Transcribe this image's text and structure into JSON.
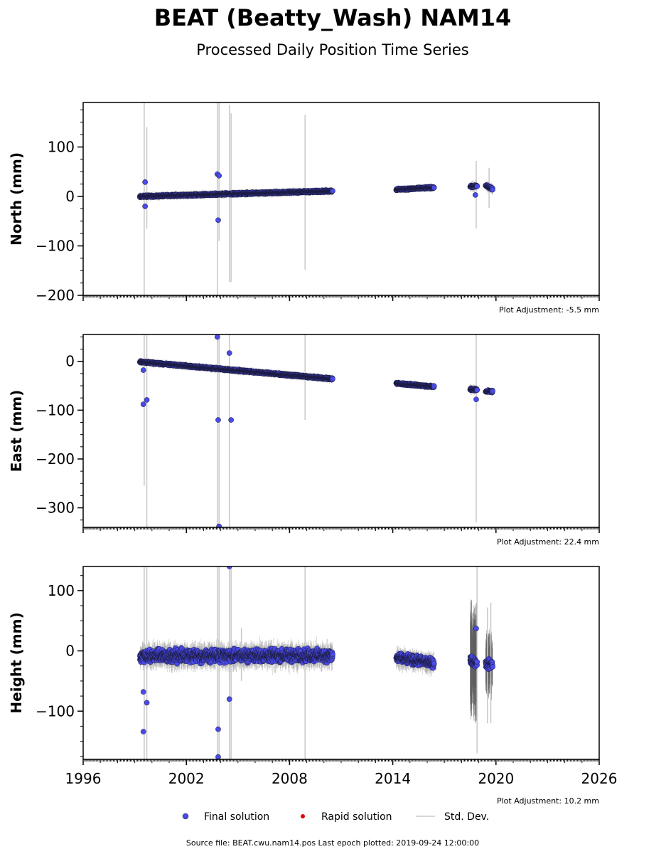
{
  "chart_data": {
    "type": "scatter",
    "title": "BEAT (Beatty_Wash) NAM14",
    "subtitle": "Processed Daily Position Time Series",
    "xlim": [
      1996,
      2026
    ],
    "x_ticks": [
      1996,
      2002,
      2008,
      2014,
      2020,
      2026
    ],
    "grid": false,
    "legend": {
      "placement": "bottom",
      "entries": [
        "Final solution",
        "Rapid solution",
        "Std. Dev."
      ]
    },
    "footer": "Source file: BEAT.cwu.nam14.pos  Last epoch plotted: 2019-09-24 12:00:00",
    "colors": {
      "final": "#4a4ae8",
      "rapid": "#dd0000",
      "std_dev": "#c8c8c8"
    },
    "panels": [
      {
        "ylabel": "North (mm)",
        "ylim": [
          -200,
          190
        ],
        "yticks": [
          -200,
          -100,
          0,
          100
        ],
        "adjustment": "Plot Adjustment: -5.5 mm",
        "segments": [
          {
            "x0": 1999.3,
            "x1": 2010.5,
            "y0": 0,
            "y1": 11,
            "noise": 1.5,
            "sigma": 6
          },
          {
            "x0": 2014.2,
            "x1": 2016.4,
            "y0": 14,
            "y1": 18,
            "noise": 1.5,
            "sigma": 5
          },
          {
            "x0": 2018.5,
            "x1": 2018.9,
            "y0": 20,
            "y1": 21,
            "noise": 1.5,
            "sigma": 8
          },
          {
            "x0": 2019.4,
            "x1": 2019.8,
            "y0": 22,
            "y1": 15,
            "noise": 2,
            "sigma": 8
          }
        ],
        "outliers": [
          {
            "x": 1999.6,
            "y": 29
          },
          {
            "x": 1999.6,
            "y": -20
          },
          {
            "x": 2003.8,
            "y": 45
          },
          {
            "x": 2003.9,
            "y": 42
          },
          {
            "x": 2003.85,
            "y": -48
          },
          {
            "x": 2018.8,
            "y": 3
          }
        ],
        "errorbars": [
          {
            "x": 1999.55,
            "lo": -200,
            "hi": 190
          },
          {
            "x": 1999.7,
            "lo": -65,
            "hi": 140
          },
          {
            "x": 2003.8,
            "lo": -200,
            "hi": 190
          },
          {
            "x": 2003.9,
            "lo": -90,
            "hi": 190
          },
          {
            "x": 2004.5,
            "lo": -173,
            "hi": 185
          },
          {
            "x": 2004.6,
            "lo": -173,
            "hi": 168
          },
          {
            "x": 2008.9,
            "lo": -148,
            "hi": 165
          },
          {
            "x": 2018.85,
            "lo": -65,
            "hi": 72
          },
          {
            "x": 2019.6,
            "lo": -23,
            "hi": 58
          }
        ]
      },
      {
        "ylabel": "East (mm)",
        "ylim": [
          -340,
          55
        ],
        "yticks": [
          -300,
          -200,
          -100,
          0
        ],
        "adjustment": "Plot Adjustment: 22.4 mm",
        "segments": [
          {
            "x0": 1999.3,
            "x1": 2010.5,
            "y0": -1,
            "y1": -36,
            "noise": 1.5,
            "sigma": 6
          },
          {
            "x0": 2014.2,
            "x1": 2016.4,
            "y0": -45,
            "y1": -52,
            "noise": 1.5,
            "sigma": 5
          },
          {
            "x0": 2018.5,
            "x1": 2018.9,
            "y0": -57,
            "y1": -58,
            "noise": 2,
            "sigma": 8
          },
          {
            "x0": 2019.4,
            "x1": 2019.8,
            "y0": -61,
            "y1": -62,
            "noise": 1.5,
            "sigma": 6
          }
        ],
        "outliers": [
          {
            "x": 1999.5,
            "y": -18
          },
          {
            "x": 1999.5,
            "y": -88
          },
          {
            "x": 1999.7,
            "y": -79
          },
          {
            "x": 2003.8,
            "y": 50
          },
          {
            "x": 2003.85,
            "y": -120
          },
          {
            "x": 2003.9,
            "y": -338
          },
          {
            "x": 2004.5,
            "y": 17
          },
          {
            "x": 2004.6,
            "y": -120
          },
          {
            "x": 2018.85,
            "y": -78
          }
        ],
        "errorbars": [
          {
            "x": 1999.55,
            "lo": -255,
            "hi": 55
          },
          {
            "x": 1999.7,
            "lo": -340,
            "hi": 55
          },
          {
            "x": 2003.8,
            "lo": -340,
            "hi": 55
          },
          {
            "x": 2003.9,
            "lo": -340,
            "hi": 55
          },
          {
            "x": 2004.5,
            "lo": -340,
            "hi": 55
          },
          {
            "x": 2008.9,
            "lo": -120,
            "hi": 55
          },
          {
            "x": 2018.85,
            "lo": -330,
            "hi": 55
          }
        ]
      },
      {
        "ylabel": "Height (mm)",
        "ylim": [
          -180,
          140
        ],
        "yticks": [
          -100,
          0,
          100
        ],
        "adjustment": "Plot Adjustment: 10.2 mm",
        "segments": [
          {
            "x0": 1999.3,
            "x1": 2010.5,
            "y0": -8,
            "y1": -8,
            "noise": 8,
            "sigma": 15
          },
          {
            "x0": 2014.2,
            "x1": 2016.4,
            "y0": -12,
            "y1": -20,
            "noise": 6,
            "sigma": 12
          },
          {
            "x0": 2018.5,
            "x1": 2018.9,
            "y0": -15,
            "y1": -20,
            "noise": 6,
            "sigma": 70
          },
          {
            "x0": 2019.4,
            "x1": 2019.8,
            "y0": -22,
            "y1": -22,
            "noise": 6,
            "sigma": 40
          }
        ],
        "outliers": [
          {
            "x": 1999.5,
            "y": -68
          },
          {
            "x": 1999.5,
            "y": -134
          },
          {
            "x": 1999.7,
            "y": -86
          },
          {
            "x": 2003.85,
            "y": -130
          },
          {
            "x": 2003.85,
            "y": -176
          },
          {
            "x": 2004.5,
            "y": 140
          },
          {
            "x": 2004.5,
            "y": -80
          },
          {
            "x": 2018.85,
            "y": 37
          }
        ],
        "errorbars": [
          {
            "x": 1999.55,
            "lo": -180,
            "hi": 140
          },
          {
            "x": 1999.7,
            "lo": -180,
            "hi": 140
          },
          {
            "x": 2003.8,
            "lo": -180,
            "hi": 140
          },
          {
            "x": 2003.9,
            "lo": -180,
            "hi": 140
          },
          {
            "x": 2004.5,
            "lo": -180,
            "hi": 140
          },
          {
            "x": 2004.6,
            "lo": -180,
            "hi": 140
          },
          {
            "x": 2005.2,
            "lo": -50,
            "hi": 38
          },
          {
            "x": 2008.9,
            "lo": -180,
            "hi": 140
          },
          {
            "x": 2018.9,
            "lo": -170,
            "hi": 140
          },
          {
            "x": 2019.5,
            "lo": -120,
            "hi": 72
          },
          {
            "x": 2019.7,
            "lo": -120,
            "hi": 80
          }
        ]
      }
    ]
  }
}
